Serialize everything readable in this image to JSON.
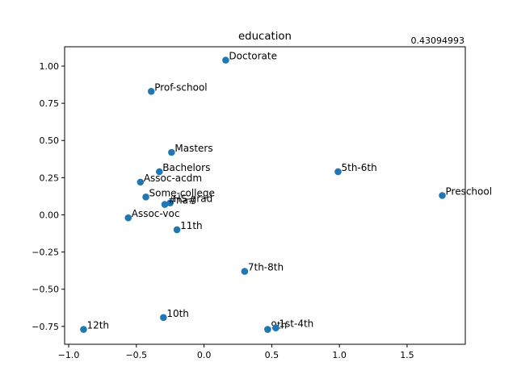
{
  "chart_data": {
    "type": "scatter",
    "title": "education",
    "corner_text": "0.43094993",
    "xlabel": "",
    "ylabel": "",
    "xlim": [
      -1.03,
      1.93
    ],
    "ylim": [
      -0.87,
      1.13
    ],
    "xticks": [
      -1.0,
      -0.5,
      0.0,
      0.5,
      1.0,
      1.5
    ],
    "xtick_labels": [
      "−1.0",
      "−0.5",
      "0.0",
      "0.5",
      "1.0",
      "1.5"
    ],
    "yticks": [
      -0.75,
      -0.5,
      -0.25,
      0.0,
      0.25,
      0.5,
      0.75,
      1.0
    ],
    "ytick_labels": [
      "−0.75",
      "−0.50",
      "−0.25",
      "0.00",
      "0.25",
      "0.50",
      "0.75",
      "1.00"
    ],
    "grid": false,
    "marker_color": "#1f77b4",
    "points": [
      {
        "label": "Doctorate",
        "x": 0.16,
        "y": 1.04
      },
      {
        "label": "Prof-school",
        "x": -0.39,
        "y": 0.83
      },
      {
        "label": "Masters",
        "x": -0.24,
        "y": 0.42
      },
      {
        "label": "Bachelors",
        "x": -0.33,
        "y": 0.29
      },
      {
        "label": "Assoc-acdm",
        "x": -0.47,
        "y": 0.22
      },
      {
        "label": "Some-college",
        "x": -0.43,
        "y": 0.12
      },
      {
        "label": "HS-grad",
        "x": -0.25,
        "y": 0.08
      },
      {
        "label": "#na#",
        "x": -0.29,
        "y": 0.07
      },
      {
        "label": "Assoc-voc",
        "x": -0.56,
        "y": -0.02
      },
      {
        "label": "11th",
        "x": -0.2,
        "y": -0.1
      },
      {
        "label": "5th-6th",
        "x": 0.99,
        "y": 0.29
      },
      {
        "label": "Preschool",
        "x": 1.76,
        "y": 0.13
      },
      {
        "label": "7th-8th",
        "x": 0.3,
        "y": -0.38
      },
      {
        "label": "10th",
        "x": -0.3,
        "y": -0.69
      },
      {
        "label": "12th",
        "x": -0.89,
        "y": -0.77
      },
      {
        "label": "9th",
        "x": 0.47,
        "y": -0.77
      },
      {
        "label": "1st-4th",
        "x": 0.53,
        "y": -0.76
      }
    ]
  }
}
